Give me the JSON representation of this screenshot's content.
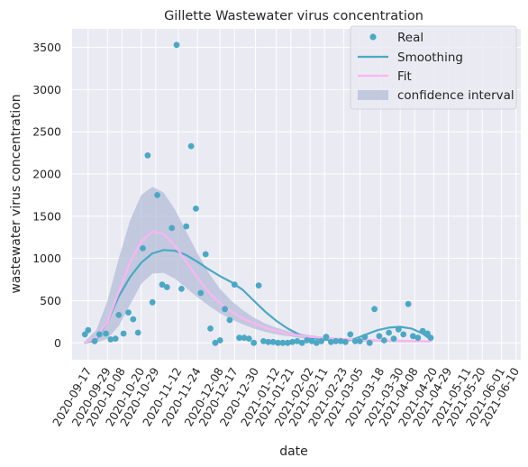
{
  "chart_data": {
    "type": "scatter",
    "title": "Gillette Wastewater virus concentration",
    "xlabel": "date",
    "ylabel": "wastewater virus concentration",
    "ylim": [
      -200,
      3720
    ],
    "yticks": [
      0,
      500,
      1000,
      1500,
      2000,
      2500,
      3000,
      3500
    ],
    "x_is_date": true,
    "xlim": [
      "2020-09-07",
      "2021-06-13"
    ],
    "xticks": [
      "2020-09-17",
      "2020-09-29",
      "2020-10-08",
      "2020-10-20",
      "2020-10-29",
      "2020-11-12",
      "2020-11-24",
      "2020-12-08",
      "2020-12-17",
      "2020-12-30",
      "2021-01-12",
      "2021-01-21",
      "2021-02-02",
      "2021-02-11",
      "2021-02-23",
      "2021-03-05",
      "2021-03-18",
      "2021-03-30",
      "2021-04-08",
      "2021-04-20",
      "2021-04-29",
      "2021-05-11",
      "2021-05-20",
      "2021-06-01",
      "2021-06-10"
    ],
    "grid": true,
    "legend_position": "top-right",
    "colors": {
      "background": "#eaeaf2",
      "grid": "#ffffff",
      "real": "#4ba8c4",
      "smoothing": "#4ba8c4",
      "fit": "#ffb3f3",
      "band": "#b4bed8"
    },
    "legend": [
      {
        "label": "Real",
        "kind": "marker"
      },
      {
        "label": "Smoothing",
        "kind": "line"
      },
      {
        "label": "Fit",
        "kind": "line"
      },
      {
        "label": "confidence interval",
        "kind": "patch"
      }
    ],
    "series": [
      {
        "name": "Real",
        "points": [
          [
            "2020-09-15",
            100
          ],
          [
            "2020-09-17",
            150
          ],
          [
            "2020-09-21",
            20
          ],
          [
            "2020-09-24",
            100
          ],
          [
            "2020-09-28",
            110
          ],
          [
            "2020-10-01",
            40
          ],
          [
            "2020-10-04",
            50
          ],
          [
            "2020-10-06",
            330
          ],
          [
            "2020-10-09",
            110
          ],
          [
            "2020-10-12",
            360
          ],
          [
            "2020-10-15",
            280
          ],
          [
            "2020-10-18",
            120
          ],
          [
            "2020-10-21",
            1120
          ],
          [
            "2020-10-24",
            2220
          ],
          [
            "2020-10-27",
            480
          ],
          [
            "2020-10-30",
            1750
          ],
          [
            "2020-11-02",
            690
          ],
          [
            "2020-11-05",
            660
          ],
          [
            "2020-11-08",
            1360
          ],
          [
            "2020-11-11",
            3530
          ],
          [
            "2020-11-14",
            640
          ],
          [
            "2020-11-17",
            1380
          ],
          [
            "2020-11-20",
            2330
          ],
          [
            "2020-11-23",
            1590
          ],
          [
            "2020-11-26",
            590
          ],
          [
            "2020-11-29",
            1050
          ],
          [
            "2020-12-02",
            170
          ],
          [
            "2020-12-05",
            0
          ],
          [
            "2020-12-08",
            30
          ],
          [
            "2020-12-11",
            400
          ],
          [
            "2020-12-14",
            270
          ],
          [
            "2020-12-17",
            690
          ],
          [
            "2020-12-20",
            60
          ],
          [
            "2020-12-23",
            60
          ],
          [
            "2020-12-26",
            50
          ],
          [
            "2020-12-29",
            0
          ],
          [
            "2021-01-01",
            680
          ],
          [
            "2021-01-04",
            20
          ],
          [
            "2021-01-07",
            10
          ],
          [
            "2021-01-10",
            10
          ],
          [
            "2021-01-13",
            0
          ],
          [
            "2021-01-16",
            0
          ],
          [
            "2021-01-19",
            0
          ],
          [
            "2021-01-22",
            10
          ],
          [
            "2021-01-25",
            20
          ],
          [
            "2021-01-28",
            0
          ],
          [
            "2021-01-31",
            30
          ],
          [
            "2021-02-03",
            20
          ],
          [
            "2021-02-06",
            0
          ],
          [
            "2021-02-09",
            20
          ],
          [
            "2021-02-12",
            70
          ],
          [
            "2021-02-15",
            10
          ],
          [
            "2021-02-18",
            20
          ],
          [
            "2021-02-21",
            20
          ],
          [
            "2021-02-24",
            10
          ],
          [
            "2021-02-27",
            100
          ],
          [
            "2021-03-02",
            20
          ],
          [
            "2021-03-05",
            20
          ],
          [
            "2021-03-08",
            70
          ],
          [
            "2021-03-11",
            0
          ],
          [
            "2021-03-14",
            400
          ],
          [
            "2021-03-17",
            80
          ],
          [
            "2021-03-20",
            30
          ],
          [
            "2021-03-23",
            120
          ],
          [
            "2021-03-26",
            50
          ],
          [
            "2021-03-29",
            160
          ],
          [
            "2021-04-01",
            100
          ],
          [
            "2021-04-04",
            460
          ],
          [
            "2021-04-07",
            80
          ],
          [
            "2021-04-10",
            60
          ],
          [
            "2021-04-13",
            140
          ],
          [
            "2021-04-16",
            110
          ],
          [
            "2021-04-18",
            60
          ]
        ]
      },
      {
        "name": "Smoothing",
        "points": [
          [
            "2020-09-15",
            0
          ],
          [
            "2020-09-22",
            40
          ],
          [
            "2020-09-29",
            250
          ],
          [
            "2020-10-06",
            550
          ],
          [
            "2020-10-13",
            780
          ],
          [
            "2020-10-20",
            950
          ],
          [
            "2020-10-27",
            1060
          ],
          [
            "2020-11-03",
            1100
          ],
          [
            "2020-11-10",
            1090
          ],
          [
            "2020-11-17",
            1040
          ],
          [
            "2020-11-24",
            960
          ],
          [
            "2020-12-01",
            870
          ],
          [
            "2020-12-08",
            790
          ],
          [
            "2020-12-15",
            720
          ],
          [
            "2020-12-22",
            630
          ],
          [
            "2020-12-29",
            500
          ],
          [
            "2021-01-05",
            370
          ],
          [
            "2021-01-12",
            260
          ],
          [
            "2021-01-19",
            170
          ],
          [
            "2021-01-26",
            100
          ],
          [
            "2021-02-02",
            60
          ],
          [
            "2021-02-09",
            40
          ],
          [
            "2021-02-16",
            30
          ],
          [
            "2021-02-23",
            20
          ],
          [
            "2021-03-02",
            50
          ],
          [
            "2021-03-09",
            100
          ],
          [
            "2021-03-16",
            150
          ],
          [
            "2021-03-23",
            180
          ],
          [
            "2021-03-30",
            190
          ],
          [
            "2021-04-06",
            170
          ],
          [
            "2021-04-13",
            110
          ],
          [
            "2021-04-18",
            40
          ]
        ]
      },
      {
        "name": "Fit",
        "points": [
          [
            "2020-09-15",
            0
          ],
          [
            "2020-09-22",
            60
          ],
          [
            "2020-09-29",
            250
          ],
          [
            "2020-10-06",
            600
          ],
          [
            "2020-10-13",
            950
          ],
          [
            "2020-10-20",
            1200
          ],
          [
            "2020-10-27",
            1320
          ],
          [
            "2020-11-03",
            1290
          ],
          [
            "2020-11-10",
            1150
          ],
          [
            "2020-11-17",
            960
          ],
          [
            "2020-11-24",
            770
          ],
          [
            "2020-12-01",
            600
          ],
          [
            "2020-12-08",
            470
          ],
          [
            "2020-12-15",
            370
          ],
          [
            "2020-12-22",
            290
          ],
          [
            "2020-12-29",
            230
          ],
          [
            "2021-01-05",
            180
          ],
          [
            "2021-01-12",
            140
          ],
          [
            "2021-01-19",
            110
          ],
          [
            "2021-01-26",
            90
          ],
          [
            "2021-02-02",
            70
          ],
          [
            "2021-02-09",
            60
          ],
          [
            "2021-02-16",
            50
          ],
          [
            "2021-02-23",
            45
          ],
          [
            "2021-03-02",
            40
          ],
          [
            "2021-03-09",
            35
          ],
          [
            "2021-03-16",
            30
          ],
          [
            "2021-03-23",
            28
          ],
          [
            "2021-03-30",
            25
          ],
          [
            "2021-04-06",
            22
          ],
          [
            "2021-04-13",
            20
          ],
          [
            "2021-04-18",
            18
          ]
        ]
      },
      {
        "name": "confidence interval",
        "points_lower": [
          [
            "2020-09-15",
            0
          ],
          [
            "2020-09-22",
            0
          ],
          [
            "2020-09-29",
            50
          ],
          [
            "2020-10-06",
            200
          ],
          [
            "2020-10-13",
            450
          ],
          [
            "2020-10-20",
            700
          ],
          [
            "2020-10-27",
            820
          ],
          [
            "2020-11-03",
            830
          ],
          [
            "2020-11-10",
            760
          ],
          [
            "2020-11-17",
            650
          ],
          [
            "2020-11-24",
            540
          ],
          [
            "2020-12-01",
            440
          ],
          [
            "2020-12-08",
            350
          ],
          [
            "2020-12-15",
            280
          ],
          [
            "2020-12-22",
            220
          ],
          [
            "2020-12-29",
            170
          ],
          [
            "2021-01-05",
            130
          ],
          [
            "2021-01-12",
            100
          ],
          [
            "2021-01-19",
            80
          ],
          [
            "2021-01-26",
            60
          ],
          [
            "2021-02-02",
            45
          ],
          [
            "2021-02-09",
            35
          ],
          [
            "2021-02-16",
            25
          ],
          [
            "2021-02-23",
            20
          ],
          [
            "2021-03-02",
            15
          ],
          [
            "2021-03-09",
            12
          ],
          [
            "2021-03-16",
            10
          ],
          [
            "2021-03-23",
            8
          ],
          [
            "2021-03-30",
            6
          ],
          [
            "2021-04-06",
            5
          ],
          [
            "2021-04-13",
            4
          ],
          [
            "2021-04-18",
            3
          ]
        ],
        "points_upper": [
          [
            "2020-09-15",
            20
          ],
          [
            "2020-09-22",
            150
          ],
          [
            "2020-09-29",
            500
          ],
          [
            "2020-10-06",
            1000
          ],
          [
            "2020-10-13",
            1450
          ],
          [
            "2020-10-20",
            1750
          ],
          [
            "2020-10-27",
            1850
          ],
          [
            "2020-11-03",
            1780
          ],
          [
            "2020-11-10",
            1580
          ],
          [
            "2020-11-17",
            1320
          ],
          [
            "2020-11-24",
            1060
          ],
          [
            "2020-12-01",
            830
          ],
          [
            "2020-12-08",
            640
          ],
          [
            "2020-12-15",
            500
          ],
          [
            "2020-12-22",
            390
          ],
          [
            "2020-12-29",
            300
          ],
          [
            "2021-01-05",
            230
          ],
          [
            "2021-01-12",
            180
          ],
          [
            "2021-01-19",
            140
          ],
          [
            "2021-01-26",
            110
          ],
          [
            "2021-02-02",
            90
          ],
          [
            "2021-02-09",
            75
          ],
          [
            "2021-02-16",
            65
          ],
          [
            "2021-02-23",
            55
          ],
          [
            "2021-03-02",
            50
          ],
          [
            "2021-03-09",
            45
          ],
          [
            "2021-03-16",
            40
          ],
          [
            "2021-03-23",
            38
          ],
          [
            "2021-03-30",
            35
          ],
          [
            "2021-04-06",
            32
          ],
          [
            "2021-04-13",
            30
          ],
          [
            "2021-04-18",
            28
          ]
        ]
      }
    ]
  }
}
